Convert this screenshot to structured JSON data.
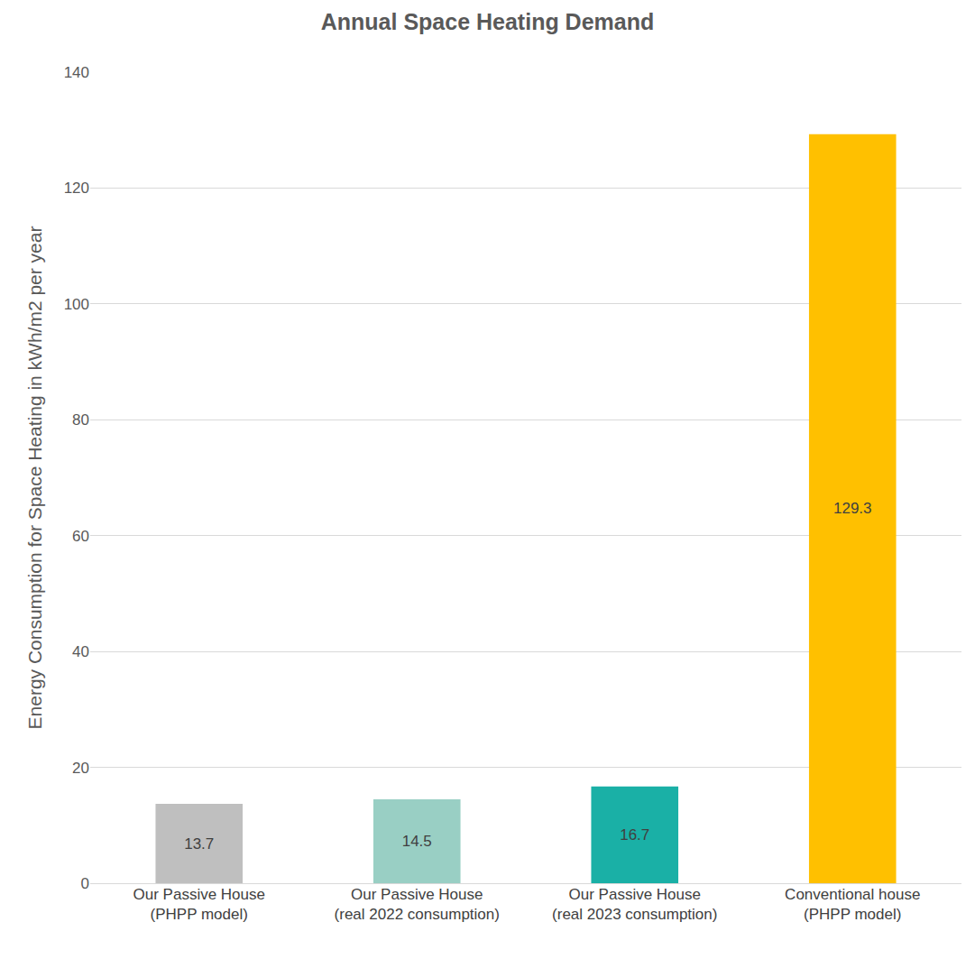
{
  "chart_data": {
    "type": "bar",
    "title": "Annual Space Heating Demand",
    "y_label": "Energy Consumption for Space Heating in kWh/m2 per year",
    "categories": [
      "Our Passive House (PHPP model)",
      "Our Passive House (real 2022 consumption)",
      "Our Passive House (real 2023 consumption)",
      "Conventional house (PHPP model)"
    ],
    "values": [
      13.7,
      14.5,
      16.7,
      129.3
    ],
    "colors": [
      "#bfbfbf",
      "#99cfc4",
      "#1ab0a6",
      "#ffc000"
    ],
    "ylim": [
      0,
      140
    ],
    "yticks": [
      0,
      20,
      40,
      60,
      80,
      100,
      120,
      140
    ],
    "grid": true,
    "data_labels": true
  }
}
